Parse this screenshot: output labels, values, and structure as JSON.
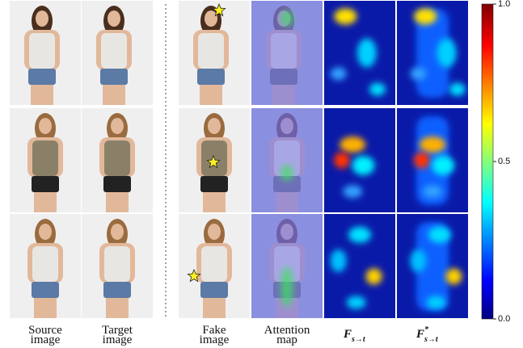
{
  "columns": [
    {
      "lines": [
        "Source",
        "image"
      ]
    },
    {
      "lines": [
        "Target",
        "image"
      ]
    },
    {
      "lines": [
        "Fake",
        "image"
      ]
    },
    {
      "lines": [
        "Attention",
        "map"
      ]
    },
    {
      "symbol": "F",
      "subscript": "s→t"
    },
    {
      "symbol": "F",
      "superscript": "*",
      "subscript": "s→t"
    }
  ],
  "colorbar": {
    "lim": [
      0,
      1
    ],
    "ticks": [
      {
        "value": 1,
        "label": "1.0"
      },
      {
        "value": 0.5,
        "label": "0.5"
      },
      {
        "value": 0,
        "label": "0.0"
      }
    ]
  }
}
